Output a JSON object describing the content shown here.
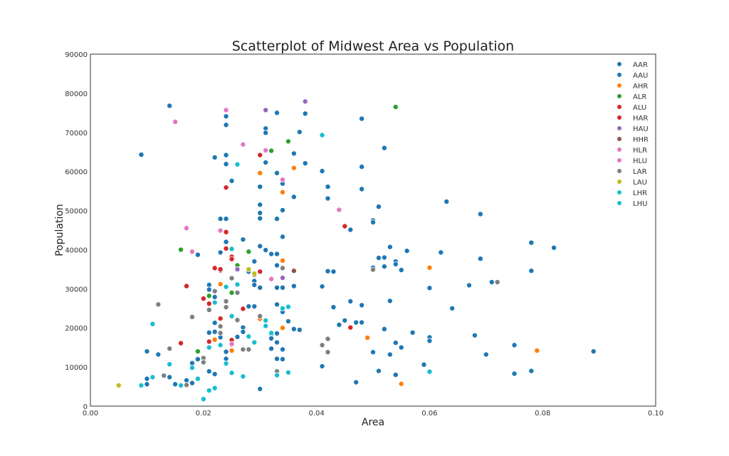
{
  "chart_data": {
    "type": "scatter",
    "title": "Scatterplot of Midwest Area vs Population",
    "xlabel": "Area",
    "ylabel": "Population",
    "xlim": [
      0,
      0.1
    ],
    "ylim": [
      0,
      90000
    ],
    "xticks": [
      "0.00",
      "0.02",
      "0.04",
      "0.06",
      "0.08",
      "0.10"
    ],
    "xtick_values": [
      0,
      0.02,
      0.04,
      0.06,
      0.08,
      0.1
    ],
    "yticks": [
      "0",
      "10000",
      "20000",
      "30000",
      "40000",
      "50000",
      "60000",
      "70000",
      "80000",
      "90000"
    ],
    "ytick_values": [
      0,
      10000,
      20000,
      30000,
      40000,
      50000,
      60000,
      70000,
      80000,
      90000
    ],
    "grid": false,
    "legend_placement": "top-right",
    "series": [
      {
        "name": "AAR",
        "color": "#1f77b4",
        "points": [
          [
            0.009,
            64300
          ],
          [
            0.014,
            76800
          ],
          [
            0.024,
            74100
          ],
          [
            0.024,
            71900
          ],
          [
            0.024,
            64200
          ],
          [
            0.022,
            63600
          ],
          [
            0.024,
            61900
          ],
          [
            0.025,
            57600
          ],
          [
            0.027,
            42600
          ],
          [
            0.023,
            47900
          ],
          [
            0.024,
            47900
          ],
          [
            0.024,
            42000
          ],
          [
            0.023,
            39300
          ],
          [
            0.025,
            40300
          ],
          [
            0.031,
            71000
          ],
          [
            0.031,
            69900
          ],
          [
            0.033,
            75000
          ],
          [
            0.038,
            74800
          ],
          [
            0.037,
            70100
          ],
          [
            0.036,
            64600
          ],
          [
            0.038,
            62100
          ],
          [
            0.031,
            62300
          ],
          [
            0.033,
            59600
          ],
          [
            0.03,
            56100
          ],
          [
            0.034,
            56900
          ],
          [
            0.036,
            53500
          ],
          [
            0.03,
            51500
          ],
          [
            0.03,
            49400
          ],
          [
            0.03,
            48000
          ],
          [
            0.033,
            47900
          ],
          [
            0.034,
            50100
          ],
          [
            0.034,
            43300
          ],
          [
            0.03,
            40900
          ],
          [
            0.031,
            39900
          ],
          [
            0.032,
            38900
          ],
          [
            0.033,
            38900
          ],
          [
            0.029,
            37000
          ],
          [
            0.028,
            34400
          ],
          [
            0.029,
            32000
          ],
          [
            0.029,
            31000
          ],
          [
            0.03,
            30300
          ],
          [
            0.033,
            36000
          ],
          [
            0.033,
            30300
          ],
          [
            0.034,
            30300
          ],
          [
            0.036,
            30700
          ],
          [
            0.033,
            26000
          ],
          [
            0.034,
            24100
          ],
          [
            0.03,
            22500
          ],
          [
            0.032,
            18300
          ],
          [
            0.033,
            18600
          ],
          [
            0.033,
            16300
          ],
          [
            0.032,
            14700
          ],
          [
            0.034,
            14500
          ],
          [
            0.033,
            12100
          ],
          [
            0.034,
            12000
          ],
          [
            0.03,
            4400
          ],
          [
            0.028,
            25500
          ],
          [
            0.029,
            25500
          ],
          [
            0.027,
            20100
          ],
          [
            0.027,
            19000
          ],
          [
            0.026,
            17700
          ],
          [
            0.025,
            16500
          ],
          [
            0.024,
            13900
          ],
          [
            0.024,
            12100
          ],
          [
            0.022,
            19000
          ],
          [
            0.021,
            18800
          ],
          [
            0.022,
            21300
          ],
          [
            0.023,
            17600
          ],
          [
            0.021,
            31000
          ],
          [
            0.021,
            29800
          ],
          [
            0.022,
            27900
          ],
          [
            0.019,
            38700
          ],
          [
            0.018,
            11000
          ],
          [
            0.019,
            12000
          ],
          [
            0.021,
            8900
          ],
          [
            0.022,
            8200
          ],
          [
            0.01,
            14000
          ],
          [
            0.012,
            13200
          ],
          [
            0.014,
            7400
          ],
          [
            0.015,
            5600
          ],
          [
            0.01,
            7000
          ],
          [
            0.01,
            5600
          ],
          [
            0.017,
            6600
          ],
          [
            0.018,
            5900
          ]
        ]
      },
      {
        "name": "AAU",
        "color": "#1f77b4",
        "points": [
          [
            0.041,
            60100
          ],
          [
            0.042,
            56100
          ],
          [
            0.042,
            53100
          ],
          [
            0.048,
            73500
          ],
          [
            0.048,
            61200
          ],
          [
            0.048,
            55500
          ],
          [
            0.052,
            66000
          ],
          [
            0.046,
            45100
          ],
          [
            0.05,
            47500
          ],
          [
            0.05,
            47000
          ],
          [
            0.051,
            51000
          ],
          [
            0.053,
            40700
          ],
          [
            0.051,
            37900
          ],
          [
            0.052,
            38000
          ],
          [
            0.056,
            39700
          ],
          [
            0.054,
            37000
          ],
          [
            0.054,
            36300
          ],
          [
            0.05,
            35400
          ],
          [
            0.052,
            35700
          ],
          [
            0.055,
            34800
          ],
          [
            0.043,
            34400
          ],
          [
            0.042,
            34500
          ],
          [
            0.041,
            30600
          ],
          [
            0.043,
            25300
          ],
          [
            0.045,
            21900
          ],
          [
            0.044,
            20800
          ],
          [
            0.046,
            26800
          ],
          [
            0.047,
            21400
          ],
          [
            0.048,
            21400
          ],
          [
            0.048,
            25800
          ],
          [
            0.053,
            26900
          ],
          [
            0.052,
            19700
          ],
          [
            0.05,
            13800
          ],
          [
            0.053,
            13200
          ],
          [
            0.054,
            16200
          ],
          [
            0.055,
            15000
          ],
          [
            0.057,
            18800
          ],
          [
            0.051,
            9000
          ],
          [
            0.054,
            8000
          ],
          [
            0.047,
            6100
          ],
          [
            0.041,
            10200
          ],
          [
            0.036,
            19700
          ],
          [
            0.037,
            19500
          ],
          [
            0.035,
            21700
          ],
          [
            0.032,
            17300
          ],
          [
            0.06,
            30200
          ],
          [
            0.06,
            17600
          ],
          [
            0.06,
            16700
          ],
          [
            0.063,
            52300
          ],
          [
            0.062,
            39300
          ],
          [
            0.064,
            25000
          ],
          [
            0.059,
            10600
          ],
          [
            0.067,
            30900
          ],
          [
            0.068,
            18100
          ],
          [
            0.069,
            49100
          ],
          [
            0.069,
            37700
          ],
          [
            0.071,
            31700
          ],
          [
            0.07,
            13200
          ],
          [
            0.075,
            15600
          ],
          [
            0.075,
            8300
          ],
          [
            0.078,
            41800
          ],
          [
            0.078,
            34600
          ],
          [
            0.078,
            9000
          ],
          [
            0.082,
            40500
          ],
          [
            0.089,
            14000
          ]
        ]
      },
      {
        "name": "AHR",
        "color": "#ff7f0e",
        "points": [
          [
            0.03,
            59600
          ],
          [
            0.036,
            60900
          ],
          [
            0.034,
            54700
          ],
          [
            0.034,
            37200
          ],
          [
            0.023,
            31200
          ],
          [
            0.03,
            22300
          ],
          [
            0.034,
            20000
          ],
          [
            0.025,
            15700
          ],
          [
            0.025,
            14200
          ],
          [
            0.022,
            17000
          ],
          [
            0.049,
            17500
          ],
          [
            0.055,
            5700
          ],
          [
            0.06,
            35400
          ],
          [
            0.079,
            14200
          ]
        ]
      },
      {
        "name": "ALR",
        "color": "#2ca02c",
        "points": [
          [
            0.054,
            76500
          ],
          [
            0.035,
            67700
          ],
          [
            0.032,
            65300
          ],
          [
            0.016,
            40000
          ],
          [
            0.028,
            39500
          ],
          [
            0.025,
            29000
          ],
          [
            0.019,
            14000
          ],
          [
            0.021,
            28200
          ],
          [
            0.026,
            36000
          ]
        ]
      },
      {
        "name": "ALU",
        "color": "#d62728",
        "points": [
          [
            0.03,
            64200
          ],
          [
            0.024,
            55900
          ],
          [
            0.045,
            46000
          ],
          [
            0.024,
            44500
          ],
          [
            0.024,
            40300
          ],
          [
            0.025,
            38200
          ],
          [
            0.022,
            35300
          ],
          [
            0.023,
            34700
          ],
          [
            0.03,
            34400
          ],
          [
            0.017,
            30700
          ]
        ]
      },
      {
        "name": "HAR",
        "color": "#d62728",
        "points": [
          [
            0.02,
            27500
          ],
          [
            0.021,
            26200
          ],
          [
            0.023,
            22400
          ],
          [
            0.016,
            16100
          ],
          [
            0.021,
            16500
          ],
          [
            0.025,
            16900
          ],
          [
            0.027,
            24900
          ],
          [
            0.046,
            20100
          ],
          [
            0.025,
            37600
          ],
          [
            0.023,
            35000
          ]
        ]
      },
      {
        "name": "HAU",
        "color": "#9467bd",
        "points": [
          [
            0.038,
            77900
          ],
          [
            0.031,
            75700
          ],
          [
            0.034,
            32800
          ],
          [
            0.026,
            35000
          ]
        ]
      },
      {
        "name": "HHR",
        "color": "#8c564b",
        "points": [
          [
            0.029,
            33600
          ],
          [
            0.036,
            34600
          ]
        ]
      },
      {
        "name": "HLR",
        "color": "#e377c2",
        "points": [
          [
            0.015,
            72700
          ],
          [
            0.024,
            75700
          ],
          [
            0.027,
            66900
          ],
          [
            0.031,
            65400
          ],
          [
            0.034,
            57900
          ],
          [
            0.044,
            50200
          ]
        ]
      },
      {
        "name": "HLU",
        "color": "#e377c2",
        "points": [
          [
            0.023,
            44900
          ],
          [
            0.017,
            45500
          ],
          [
            0.018,
            39500
          ],
          [
            0.032,
            32500
          ],
          [
            0.025,
            15900
          ]
        ]
      },
      {
        "name": "LAR",
        "color": "#7f7f7f",
        "points": [
          [
            0.012,
            26000
          ],
          [
            0.014,
            14700
          ],
          [
            0.013,
            7800
          ],
          [
            0.017,
            5400
          ],
          [
            0.018,
            22800
          ],
          [
            0.02,
            12300
          ],
          [
            0.02,
            11200
          ],
          [
            0.021,
            24600
          ],
          [
            0.022,
            29400
          ],
          [
            0.023,
            20400
          ],
          [
            0.024,
            26800
          ],
          [
            0.024,
            25300
          ],
          [
            0.025,
            32700
          ],
          [
            0.026,
            29000
          ],
          [
            0.027,
            14500
          ],
          [
            0.028,
            14500
          ],
          [
            0.03,
            23000
          ],
          [
            0.033,
            8900
          ],
          [
            0.034,
            35300
          ],
          [
            0.042,
            17200
          ],
          [
            0.041,
            15600
          ],
          [
            0.042,
            13800
          ],
          [
            0.05,
            34900
          ],
          [
            0.072,
            31700
          ],
          [
            0.026,
            22000
          ],
          [
            0.023,
            18700
          ]
        ]
      },
      {
        "name": "LAU",
        "color": "#bcbd22",
        "points": [
          [
            0.005,
            5300
          ],
          [
            0.029,
            33900
          ],
          [
            0.028,
            35000
          ]
        ]
      },
      {
        "name": "LHR",
        "color": "#17becf",
        "points": [
          [
            0.041,
            69300
          ],
          [
            0.026,
            61800
          ],
          [
            0.009,
            5300
          ],
          [
            0.011,
            21000
          ],
          [
            0.011,
            7400
          ],
          [
            0.014,
            10700
          ],
          [
            0.016,
            5300
          ],
          [
            0.018,
            9800
          ],
          [
            0.019,
            7000
          ],
          [
            0.02,
            1800
          ],
          [
            0.021,
            4000
          ],
          [
            0.022,
            4600
          ],
          [
            0.021,
            15000
          ],
          [
            0.022,
            26500
          ],
          [
            0.024,
            30500
          ],
          [
            0.025,
            40200
          ]
        ]
      },
      {
        "name": "LHU",
        "color": "#17becf",
        "points": [
          [
            0.025,
            23000
          ],
          [
            0.024,
            10900
          ],
          [
            0.025,
            8500
          ],
          [
            0.027,
            7600
          ],
          [
            0.028,
            17800
          ],
          [
            0.029,
            16300
          ],
          [
            0.031,
            21900
          ],
          [
            0.031,
            20500
          ],
          [
            0.032,
            18700
          ],
          [
            0.034,
            25000
          ],
          [
            0.035,
            25400
          ],
          [
            0.033,
            7900
          ],
          [
            0.035,
            8600
          ],
          [
            0.06,
            8800
          ],
          [
            0.023,
            15600
          ],
          [
            0.026,
            31100
          ]
        ]
      }
    ]
  }
}
